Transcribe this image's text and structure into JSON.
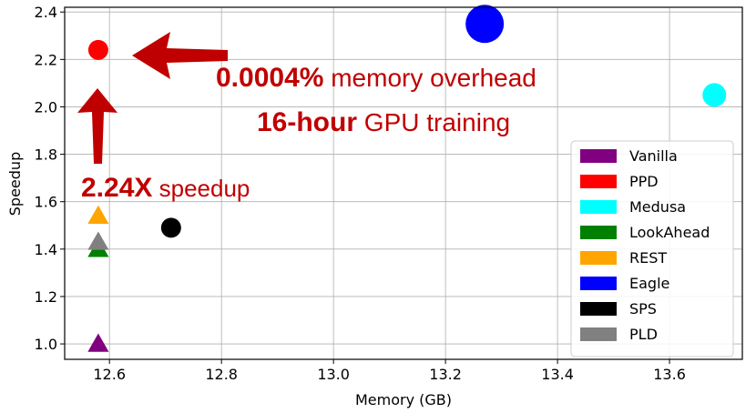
{
  "chart_data": {
    "type": "scatter",
    "xlabel": "Memory (GB)",
    "ylabel": "Speedup",
    "xlim": [
      12.52,
      13.73
    ],
    "ylim": [
      0.935,
      2.42
    ],
    "xticks": [
      12.6,
      12.8,
      13.0,
      13.2,
      13.4,
      13.6
    ],
    "xtick_labels": [
      "12.6",
      "12.8",
      "13.0",
      "13.2",
      "13.4",
      "13.6"
    ],
    "yticks": [
      1.0,
      1.2,
      1.4,
      1.6,
      1.8,
      2.0,
      2.2,
      2.4
    ],
    "ytick_labels": [
      "1.0",
      "1.2",
      "1.4",
      "1.6",
      "1.8",
      "2.0",
      "2.2",
      "2.4"
    ],
    "grid": true,
    "legend_position": "lower-right",
    "series": [
      {
        "name": "Vanilla",
        "color": "#800080",
        "marker": "triangle",
        "size": "small",
        "x": 12.58,
        "y": 1.0
      },
      {
        "name": "PPD",
        "color": "#ff0000",
        "marker": "circle",
        "size": "small",
        "x": 12.58,
        "y": 2.24
      },
      {
        "name": "Medusa",
        "color": "#00ffff",
        "marker": "circle",
        "size": "medium",
        "x": 13.68,
        "y": 2.05
      },
      {
        "name": "LookAhead",
        "color": "#008000",
        "marker": "triangle",
        "size": "small",
        "x": 12.58,
        "y": 1.4
      },
      {
        "name": "REST",
        "color": "#ffa500",
        "marker": "triangle",
        "size": "small",
        "x": 12.58,
        "y": 1.54
      },
      {
        "name": "Eagle",
        "color": "#0000ff",
        "marker": "circle",
        "size": "large",
        "x": 13.27,
        "y": 2.35
      },
      {
        "name": "SPS",
        "color": "#000000",
        "marker": "circle",
        "size": "small",
        "x": 12.71,
        "y": 1.49
      },
      {
        "name": "PLD",
        "color": "#808080",
        "marker": "triangle",
        "size": "small",
        "x": 12.58,
        "y": 1.43
      }
    ],
    "annotations": [
      {
        "bold": "0.0004%",
        "text": " memory overhead"
      },
      {
        "bold": "16-hour",
        "text": " GPU training"
      },
      {
        "bold": "2.24X",
        "text": " speedup"
      }
    ],
    "annotation_color": "#c00000"
  }
}
